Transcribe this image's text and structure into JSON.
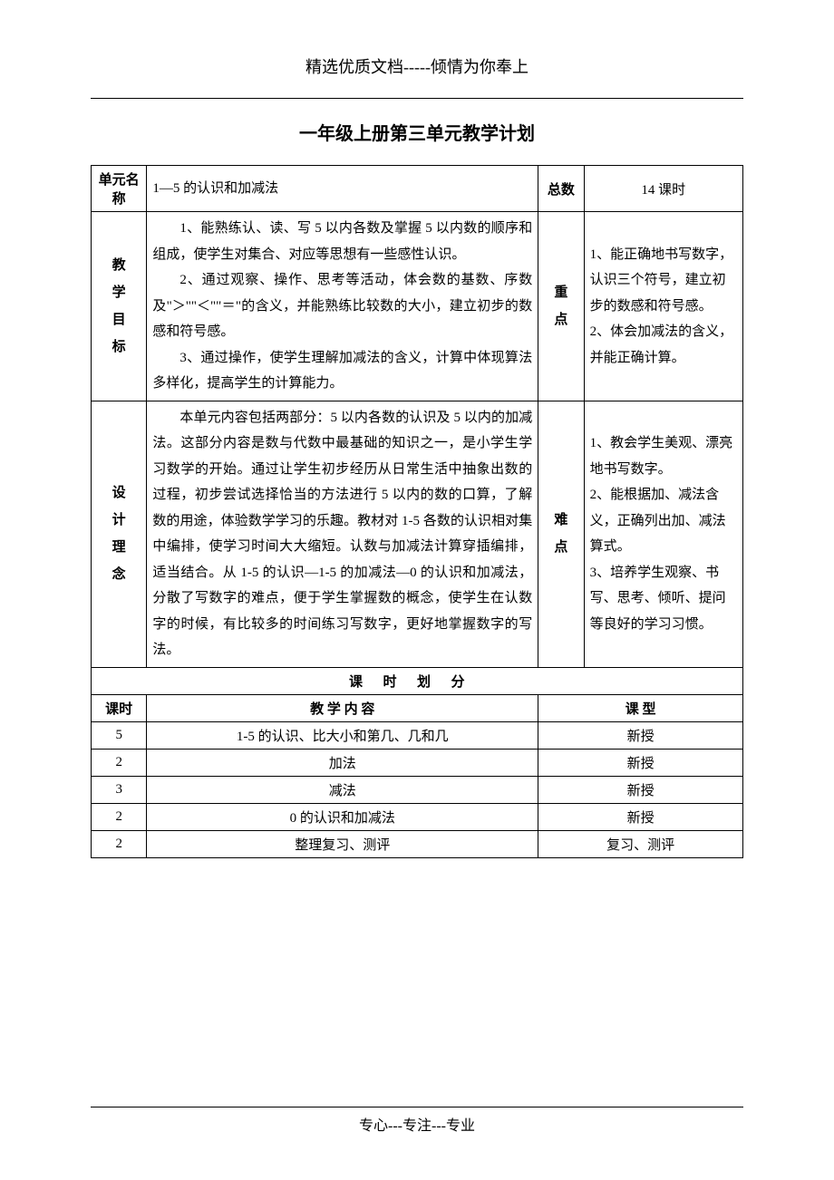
{
  "header": "精选优质文档-----倾情为你奉上",
  "title": "一年级上册第三单元教学计划",
  "row1": {
    "label": "单元名称",
    "unit_name": "1—5 的认识和加减法",
    "total_label": "总数",
    "total_value": "14 课时"
  },
  "goals": {
    "label": "教学目标",
    "p1": "1、能熟练认、读、写 5 以内各数及掌握 5 以内数的顺序和组成，使学生对集合、对应等思想有一些感性认识。",
    "p2": "2、通过观察、操作、思考等活动，体会数的基数、序数及\"＞\"\"＜\"\"＝\"的含义，并能熟练比较数的大小，建立初步的数感和符号感。",
    "p3": "3、通过操作，使学生理解加减法的含义，计算中体现算法多样化，提高学生的计算能力。",
    "key_label": "重点",
    "key_text": "1、能正确地书写数字，认识三个符号，建立初步的数感和符号感。\n2、体会加减法的含义，并能正确计算。"
  },
  "design": {
    "label": "设计理念",
    "p1": "本单元内容包括两部分：5 以内各数的认识及 5 以内的加减法。这部分内容是数与代数中最基础的知识之一，是小学生学习数学的开始。通过让学生初步经历从日常生活中抽象出数的过程，初步尝试选择恰当的方法进行 5 以内的数的口算，了解数的用途，体验数学学习的乐趣。教材对 1-5 各数的认识相对集中编排，使学习时间大大缩短。认数与加减法计算穿插编排，适当结合。从 1-5 的认识—1-5 的加减法—0 的认识和加减法，分散了写数字的难点，便于学生掌握数的概念，使学生在认数字的时候，有比较多的时间练习写数字，更好地掌握数字的写法。",
    "diff_label": "难点",
    "diff_text": "1、教会学生美观、漂亮地书写数字。\n2、能根据加、减法含义，正确列出加、减法算式。\n3、培养学生观察、书写、思考、倾听、提问等良好的学习习惯。"
  },
  "division_header": "课时划分",
  "lesson_header": {
    "c1": "课时",
    "c2": "教 学 内 容",
    "c3": "课  型"
  },
  "lessons": [
    {
      "hours": "5",
      "content": "1-5 的认识、比大小和第几、几和几",
      "type": "新授"
    },
    {
      "hours": "2",
      "content": "加法",
      "type": "新授"
    },
    {
      "hours": "3",
      "content": "减法",
      "type": "新授"
    },
    {
      "hours": "2",
      "content": "0 的认识和加减法",
      "type": "新授"
    },
    {
      "hours": "2",
      "content": "整理复习、测评",
      "type": "复习、测评"
    }
  ],
  "footer": "专心---专注---专业"
}
